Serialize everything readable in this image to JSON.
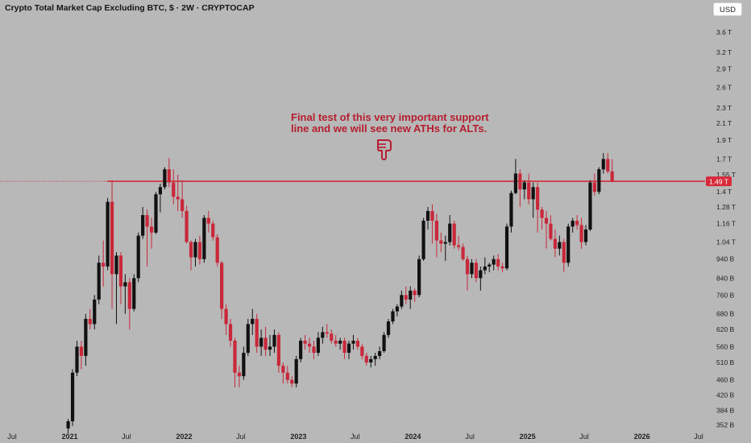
{
  "header": {
    "title": "Crypto Total Market Cap Excluding BTC, $ · 2W · CRYPTOCAP",
    "currency_button": "USD"
  },
  "annotation": {
    "line1": "Final test of this very important support",
    "line2": "line and we will see new ATHs for ALTs.",
    "icon": "pointing-down-hand-icon"
  },
  "colors": {
    "up": "#111111",
    "down": "#c8283a",
    "support": "#d62a3a",
    "annotation": "#b41e2e",
    "background": "#b8b8b8"
  },
  "chart_data": {
    "type": "candlestick",
    "scale": "log",
    "ylim": [
      340,
      4000
    ],
    "y_unit": "B",
    "y_ticks": [
      {
        "v": 3600,
        "label": "3.6 T"
      },
      {
        "v": 3200,
        "label": "3.2 T"
      },
      {
        "v": 2900,
        "label": "2.9 T"
      },
      {
        "v": 2600,
        "label": "2.6 T"
      },
      {
        "v": 2300,
        "label": "2.3 T"
      },
      {
        "v": 2100,
        "label": "2.1 T"
      },
      {
        "v": 1900,
        "label": "1.9 T"
      },
      {
        "v": 1700,
        "label": "1.7 T"
      },
      {
        "v": 1550,
        "label": "1.55 T"
      },
      {
        "v": 1400,
        "label": "1.4 T"
      },
      {
        "v": 1280,
        "label": "1.28 T"
      },
      {
        "v": 1160,
        "label": "1.16 T"
      },
      {
        "v": 1040,
        "label": "1.04 T"
      },
      {
        "v": 940,
        "label": "940 B"
      },
      {
        "v": 840,
        "label": "840 B"
      },
      {
        "v": 760,
        "label": "760 B"
      },
      {
        "v": 680,
        "label": "680 B"
      },
      {
        "v": 620,
        "label": "620 B"
      },
      {
        "v": 560,
        "label": "560 B"
      },
      {
        "v": 510,
        "label": "510 B"
      },
      {
        "v": 460,
        "label": "460 B"
      },
      {
        "v": 420,
        "label": "420 B"
      },
      {
        "v": 384,
        "label": "384 B"
      },
      {
        "v": 352,
        "label": "352 B"
      }
    ],
    "x_ticks": [
      {
        "date": "2020-07-01",
        "label": "Jul",
        "bold": false
      },
      {
        "date": "2021-01-01",
        "label": "2021",
        "bold": true
      },
      {
        "date": "2021-07-01",
        "label": "Jul",
        "bold": false
      },
      {
        "date": "2022-01-01",
        "label": "2022",
        "bold": true
      },
      {
        "date": "2022-07-01",
        "label": "Jul",
        "bold": false
      },
      {
        "date": "2023-01-01",
        "label": "2023",
        "bold": true
      },
      {
        "date": "2023-07-01",
        "label": "Jul",
        "bold": false
      },
      {
        "date": "2024-01-01",
        "label": "2024",
        "bold": true
      },
      {
        "date": "2024-07-01",
        "label": "Jul",
        "bold": false
      },
      {
        "date": "2025-01-01",
        "label": "2025",
        "bold": true
      },
      {
        "date": "2025-07-01",
        "label": "Jul",
        "bold": false
      },
      {
        "date": "2026-01-01",
        "label": "2026",
        "bold": true
      },
      {
        "date": "2026-07-01",
        "label": "Jul",
        "bold": false
      }
    ],
    "x_range": [
      "2020-07-01",
      "2026-07-01"
    ],
    "support_level": {
      "value": 1490,
      "start": "2021-05-01",
      "label": "1.49 T"
    },
    "candles": [
      {
        "d": "2020-12-27",
        "o": 345,
        "h": 365,
        "l": 335,
        "c": 360
      },
      {
        "d": "2021-01-10",
        "o": 360,
        "h": 490,
        "l": 350,
        "c": 480
      },
      {
        "d": "2021-01-24",
        "o": 480,
        "h": 580,
        "l": 470,
        "c": 560
      },
      {
        "d": "2021-02-07",
        "o": 560,
        "h": 580,
        "l": 490,
        "c": 530
      },
      {
        "d": "2021-02-21",
        "o": 530,
        "h": 680,
        "l": 500,
        "c": 660
      },
      {
        "d": "2021-03-07",
        "o": 660,
        "h": 700,
        "l": 620,
        "c": 640
      },
      {
        "d": "2021-03-21",
        "o": 640,
        "h": 760,
        "l": 620,
        "c": 740
      },
      {
        "d": "2021-04-04",
        "o": 740,
        "h": 960,
        "l": 720,
        "c": 920
      },
      {
        "d": "2021-04-18",
        "o": 920,
        "h": 1050,
        "l": 800,
        "c": 900
      },
      {
        "d": "2021-05-02",
        "o": 900,
        "h": 1350,
        "l": 880,
        "c": 1320
      },
      {
        "d": "2021-05-16",
        "o": 1320,
        "h": 1500,
        "l": 700,
        "c": 860
      },
      {
        "d": "2021-05-30",
        "o": 860,
        "h": 980,
        "l": 640,
        "c": 960
      },
      {
        "d": "2021-06-13",
        "o": 960,
        "h": 980,
        "l": 720,
        "c": 800
      },
      {
        "d": "2021-06-27",
        "o": 800,
        "h": 860,
        "l": 680,
        "c": 820
      },
      {
        "d": "2021-07-11",
        "o": 820,
        "h": 840,
        "l": 620,
        "c": 700
      },
      {
        "d": "2021-07-25",
        "o": 700,
        "h": 860,
        "l": 690,
        "c": 840
      },
      {
        "d": "2021-08-08",
        "o": 840,
        "h": 1100,
        "l": 820,
        "c": 1080
      },
      {
        "d": "2021-08-22",
        "o": 1080,
        "h": 1280,
        "l": 1060,
        "c": 1220
      },
      {
        "d": "2021-09-05",
        "o": 1220,
        "h": 1260,
        "l": 900,
        "c": 1140
      },
      {
        "d": "2021-09-19",
        "o": 1140,
        "h": 1200,
        "l": 1000,
        "c": 1100
      },
      {
        "d": "2021-10-03",
        "o": 1100,
        "h": 1400,
        "l": 1090,
        "c": 1380
      },
      {
        "d": "2021-10-17",
        "o": 1380,
        "h": 1470,
        "l": 1240,
        "c": 1440
      },
      {
        "d": "2021-10-31",
        "o": 1440,
        "h": 1620,
        "l": 1420,
        "c": 1600
      },
      {
        "d": "2021-11-14",
        "o": 1600,
        "h": 1710,
        "l": 1440,
        "c": 1480
      },
      {
        "d": "2021-11-28",
        "o": 1480,
        "h": 1600,
        "l": 1300,
        "c": 1360
      },
      {
        "d": "2021-12-12",
        "o": 1360,
        "h": 1550,
        "l": 1250,
        "c": 1340
      },
      {
        "d": "2021-12-26",
        "o": 1340,
        "h": 1500,
        "l": 1200,
        "c": 1250
      },
      {
        "d": "2022-01-09",
        "o": 1250,
        "h": 1290,
        "l": 1030,
        "c": 1040
      },
      {
        "d": "2022-01-23",
        "o": 1040,
        "h": 1050,
        "l": 880,
        "c": 950
      },
      {
        "d": "2022-02-06",
        "o": 950,
        "h": 1060,
        "l": 900,
        "c": 1040
      },
      {
        "d": "2022-02-20",
        "o": 1040,
        "h": 1080,
        "l": 910,
        "c": 940
      },
      {
        "d": "2022-03-06",
        "o": 940,
        "h": 1220,
        "l": 920,
        "c": 1200
      },
      {
        "d": "2022-03-20",
        "o": 1200,
        "h": 1250,
        "l": 1100,
        "c": 1160
      },
      {
        "d": "2022-04-03",
        "o": 1160,
        "h": 1180,
        "l": 1050,
        "c": 1070
      },
      {
        "d": "2022-04-17",
        "o": 1070,
        "h": 1090,
        "l": 900,
        "c": 920
      },
      {
        "d": "2022-05-01",
        "o": 920,
        "h": 930,
        "l": 660,
        "c": 700
      },
      {
        "d": "2022-05-15",
        "o": 700,
        "h": 720,
        "l": 600,
        "c": 640
      },
      {
        "d": "2022-05-29",
        "o": 640,
        "h": 660,
        "l": 560,
        "c": 580
      },
      {
        "d": "2022-06-12",
        "o": 580,
        "h": 590,
        "l": 440,
        "c": 480
      },
      {
        "d": "2022-06-26",
        "o": 480,
        "h": 500,
        "l": 440,
        "c": 470
      },
      {
        "d": "2022-07-10",
        "o": 470,
        "h": 560,
        "l": 460,
        "c": 540
      },
      {
        "d": "2022-07-24",
        "o": 540,
        "h": 660,
        "l": 530,
        "c": 640
      },
      {
        "d": "2022-08-07",
        "o": 640,
        "h": 700,
        "l": 600,
        "c": 660
      },
      {
        "d": "2022-08-21",
        "o": 660,
        "h": 680,
        "l": 540,
        "c": 560
      },
      {
        "d": "2022-09-04",
        "o": 560,
        "h": 620,
        "l": 530,
        "c": 590
      },
      {
        "d": "2022-09-18",
        "o": 590,
        "h": 630,
        "l": 530,
        "c": 550
      },
      {
        "d": "2022-10-02",
        "o": 550,
        "h": 600,
        "l": 530,
        "c": 560
      },
      {
        "d": "2022-10-16",
        "o": 560,
        "h": 620,
        "l": 540,
        "c": 600
      },
      {
        "d": "2022-10-30",
        "o": 600,
        "h": 610,
        "l": 480,
        "c": 500
      },
      {
        "d": "2022-11-13",
        "o": 500,
        "h": 510,
        "l": 450,
        "c": 480
      },
      {
        "d": "2022-11-27",
        "o": 480,
        "h": 500,
        "l": 450,
        "c": 460
      },
      {
        "d": "2022-12-11",
        "o": 460,
        "h": 470,
        "l": 440,
        "c": 450
      },
      {
        "d": "2022-12-25",
        "o": 450,
        "h": 530,
        "l": 440,
        "c": 520
      },
      {
        "d": "2023-01-08",
        "o": 520,
        "h": 590,
        "l": 510,
        "c": 580
      },
      {
        "d": "2023-01-22",
        "o": 580,
        "h": 600,
        "l": 550,
        "c": 570
      },
      {
        "d": "2023-02-05",
        "o": 570,
        "h": 590,
        "l": 540,
        "c": 560
      },
      {
        "d": "2023-02-19",
        "o": 560,
        "h": 580,
        "l": 520,
        "c": 540
      },
      {
        "d": "2023-03-05",
        "o": 540,
        "h": 610,
        "l": 530,
        "c": 590
      },
      {
        "d": "2023-03-19",
        "o": 590,
        "h": 630,
        "l": 570,
        "c": 610
      },
      {
        "d": "2023-04-02",
        "o": 610,
        "h": 640,
        "l": 590,
        "c": 605
      },
      {
        "d": "2023-04-16",
        "o": 605,
        "h": 620,
        "l": 570,
        "c": 580
      },
      {
        "d": "2023-04-30",
        "o": 580,
        "h": 600,
        "l": 560,
        "c": 570
      },
      {
        "d": "2023-05-14",
        "o": 570,
        "h": 590,
        "l": 550,
        "c": 580
      },
      {
        "d": "2023-05-28",
        "o": 580,
        "h": 590,
        "l": 520,
        "c": 540
      },
      {
        "d": "2023-06-11",
        "o": 540,
        "h": 580,
        "l": 520,
        "c": 570
      },
      {
        "d": "2023-06-25",
        "o": 570,
        "h": 600,
        "l": 550,
        "c": 580
      },
      {
        "d": "2023-07-09",
        "o": 580,
        "h": 590,
        "l": 550,
        "c": 560
      },
      {
        "d": "2023-07-23",
        "o": 560,
        "h": 570,
        "l": 520,
        "c": 530
      },
      {
        "d": "2023-08-06",
        "o": 530,
        "h": 540,
        "l": 500,
        "c": 510
      },
      {
        "d": "2023-08-20",
        "o": 510,
        "h": 530,
        "l": 495,
        "c": 520
      },
      {
        "d": "2023-09-03",
        "o": 520,
        "h": 540,
        "l": 500,
        "c": 530
      },
      {
        "d": "2023-09-17",
        "o": 530,
        "h": 560,
        "l": 520,
        "c": 545
      },
      {
        "d": "2023-10-01",
        "o": 545,
        "h": 610,
        "l": 540,
        "c": 600
      },
      {
        "d": "2023-10-15",
        "o": 600,
        "h": 660,
        "l": 590,
        "c": 650
      },
      {
        "d": "2023-10-29",
        "o": 650,
        "h": 700,
        "l": 640,
        "c": 690
      },
      {
        "d": "2023-11-12",
        "o": 690,
        "h": 720,
        "l": 670,
        "c": 710
      },
      {
        "d": "2023-11-26",
        "o": 710,
        "h": 780,
        "l": 700,
        "c": 760
      },
      {
        "d": "2023-12-10",
        "o": 760,
        "h": 800,
        "l": 720,
        "c": 740
      },
      {
        "d": "2023-12-24",
        "o": 740,
        "h": 800,
        "l": 700,
        "c": 780
      },
      {
        "d": "2024-01-07",
        "o": 780,
        "h": 790,
        "l": 730,
        "c": 760
      },
      {
        "d": "2024-01-21",
        "o": 760,
        "h": 960,
        "l": 750,
        "c": 940
      },
      {
        "d": "2024-02-04",
        "o": 940,
        "h": 1200,
        "l": 930,
        "c": 1180
      },
      {
        "d": "2024-02-18",
        "o": 1180,
        "h": 1280,
        "l": 1120,
        "c": 1250
      },
      {
        "d": "2024-03-03",
        "o": 1250,
        "h": 1300,
        "l": 1030,
        "c": 1180
      },
      {
        "d": "2024-03-17",
        "o": 1180,
        "h": 1230,
        "l": 950,
        "c": 1050
      },
      {
        "d": "2024-03-31",
        "o": 1050,
        "h": 1100,
        "l": 980,
        "c": 1030
      },
      {
        "d": "2024-04-14",
        "o": 1030,
        "h": 1080,
        "l": 930,
        "c": 1040
      },
      {
        "d": "2024-04-28",
        "o": 1040,
        "h": 1220,
        "l": 1020,
        "c": 1160
      },
      {
        "d": "2024-05-12",
        "o": 1160,
        "h": 1180,
        "l": 1000,
        "c": 1020
      },
      {
        "d": "2024-05-26",
        "o": 1020,
        "h": 1080,
        "l": 990,
        "c": 1010
      },
      {
        "d": "2024-06-09",
        "o": 1010,
        "h": 1030,
        "l": 930,
        "c": 940
      },
      {
        "d": "2024-06-23",
        "o": 940,
        "h": 960,
        "l": 780,
        "c": 860
      },
      {
        "d": "2024-07-07",
        "o": 860,
        "h": 940,
        "l": 840,
        "c": 920
      },
      {
        "d": "2024-07-21",
        "o": 920,
        "h": 940,
        "l": 820,
        "c": 840
      },
      {
        "d": "2024-08-04",
        "o": 840,
        "h": 900,
        "l": 780,
        "c": 880
      },
      {
        "d": "2024-08-18",
        "o": 880,
        "h": 950,
        "l": 860,
        "c": 900
      },
      {
        "d": "2024-09-01",
        "o": 900,
        "h": 920,
        "l": 870,
        "c": 910
      },
      {
        "d": "2024-09-15",
        "o": 910,
        "h": 960,
        "l": 880,
        "c": 940
      },
      {
        "d": "2024-09-29",
        "o": 940,
        "h": 970,
        "l": 880,
        "c": 900
      },
      {
        "d": "2024-10-13",
        "o": 900,
        "h": 920,
        "l": 870,
        "c": 890
      },
      {
        "d": "2024-10-27",
        "o": 890,
        "h": 1160,
        "l": 880,
        "c": 1140
      },
      {
        "d": "2024-11-10",
        "o": 1140,
        "h": 1410,
        "l": 1100,
        "c": 1390
      },
      {
        "d": "2024-11-24",
        "o": 1390,
        "h": 1700,
        "l": 1380,
        "c": 1560
      },
      {
        "d": "2024-12-08",
        "o": 1560,
        "h": 1600,
        "l": 1280,
        "c": 1420
      },
      {
        "d": "2024-12-22",
        "o": 1420,
        "h": 1500,
        "l": 1340,
        "c": 1480
      },
      {
        "d": "2025-01-05",
        "o": 1480,
        "h": 1560,
        "l": 1300,
        "c": 1340
      },
      {
        "d": "2025-01-19",
        "o": 1340,
        "h": 1480,
        "l": 1200,
        "c": 1440
      },
      {
        "d": "2025-02-02",
        "o": 1440,
        "h": 1480,
        "l": 1100,
        "c": 1260
      },
      {
        "d": "2025-02-16",
        "o": 1260,
        "h": 1280,
        "l": 1120,
        "c": 1200
      },
      {
        "d": "2025-03-02",
        "o": 1200,
        "h": 1250,
        "l": 1000,
        "c": 1160
      },
      {
        "d": "2025-03-16",
        "o": 1160,
        "h": 1220,
        "l": 1050,
        "c": 1060
      },
      {
        "d": "2025-03-30",
        "o": 1060,
        "h": 1120,
        "l": 950,
        "c": 1000
      },
      {
        "d": "2025-04-13",
        "o": 1000,
        "h": 1080,
        "l": 960,
        "c": 1040
      },
      {
        "d": "2025-04-27",
        "o": 1040,
        "h": 1060,
        "l": 870,
        "c": 920
      },
      {
        "d": "2025-05-11",
        "o": 920,
        "h": 1160,
        "l": 900,
        "c": 1140
      },
      {
        "d": "2025-05-25",
        "o": 1140,
        "h": 1200,
        "l": 1100,
        "c": 1180
      },
      {
        "d": "2025-06-08",
        "o": 1180,
        "h": 1220,
        "l": 1120,
        "c": 1150
      },
      {
        "d": "2025-06-22",
        "o": 1150,
        "h": 1200,
        "l": 1000,
        "c": 1040
      },
      {
        "d": "2025-07-06",
        "o": 1040,
        "h": 1150,
        "l": 1020,
        "c": 1120
      },
      {
        "d": "2025-07-20",
        "o": 1120,
        "h": 1500,
        "l": 1110,
        "c": 1480
      },
      {
        "d": "2025-08-03",
        "o": 1480,
        "h": 1560,
        "l": 1370,
        "c": 1400
      },
      {
        "d": "2025-08-17",
        "o": 1400,
        "h": 1620,
        "l": 1380,
        "c": 1600
      },
      {
        "d": "2025-08-31",
        "o": 1600,
        "h": 1760,
        "l": 1560,
        "c": 1700
      },
      {
        "d": "2025-09-14",
        "o": 1700,
        "h": 1760,
        "l": 1560,
        "c": 1580
      },
      {
        "d": "2025-09-28",
        "o": 1580,
        "h": 1700,
        "l": 1480,
        "c": 1490
      }
    ]
  }
}
